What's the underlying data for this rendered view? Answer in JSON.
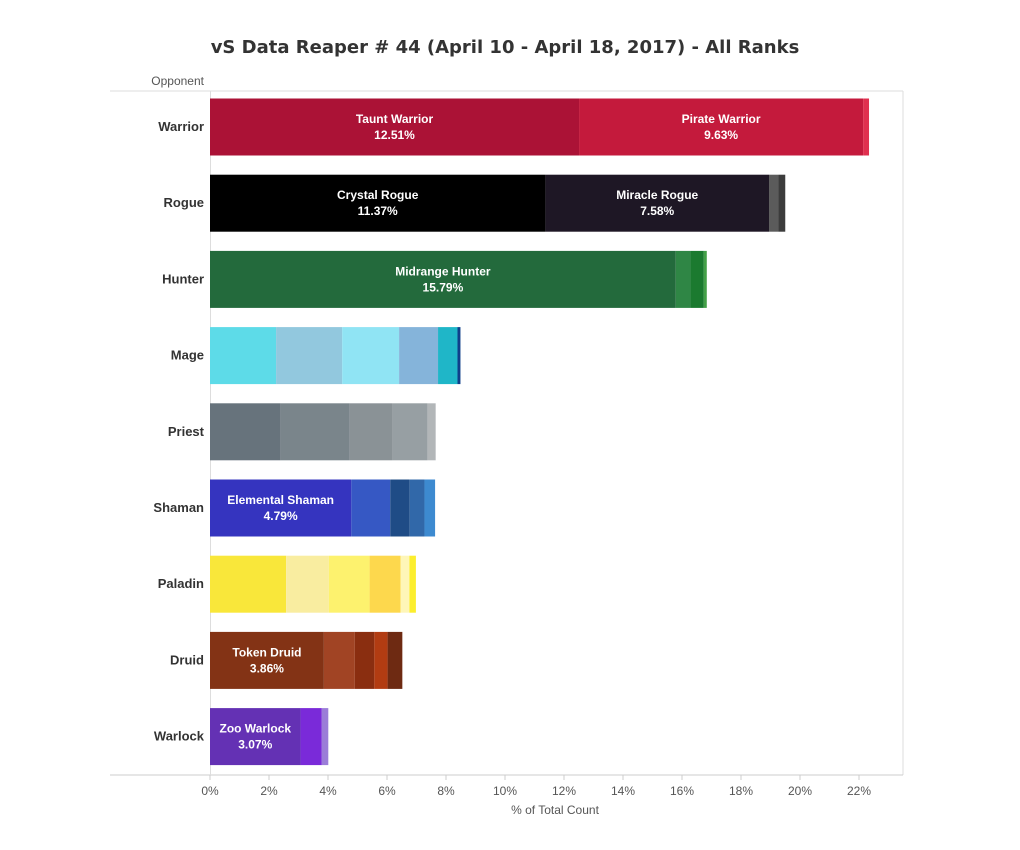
{
  "chart_data": {
    "type": "bar",
    "orientation": "horizontal",
    "stacked": true,
    "title": "vS Data Reaper # 44 (April 10 - April 18, 2017) - All Ranks",
    "xlabel": "% of Total Count",
    "ylabel": "Opponent",
    "xlim": [
      0,
      23.5
    ],
    "x_ticks": [
      "0%",
      "2%",
      "4%",
      "6%",
      "8%",
      "10%",
      "12%",
      "14%",
      "16%",
      "18%",
      "20%",
      "22%"
    ],
    "grid": false,
    "categories": [
      "Warrior",
      "Rogue",
      "Hunter",
      "Mage",
      "Priest",
      "Shaman",
      "Paladin",
      "Druid",
      "Warlock"
    ],
    "bars": [
      {
        "category": "Warrior",
        "segments": [
          {
            "name": "Taunt Warrior",
            "value": 12.51,
            "label": "12.51%",
            "color": "#ab1236"
          },
          {
            "name": "Pirate Warrior",
            "value": 9.63,
            "label": "9.63%",
            "color": "#c41a3c"
          },
          {
            "value": 0.2,
            "color": "#e0304f"
          }
        ]
      },
      {
        "category": "Rogue",
        "segments": [
          {
            "name": "Crystal Rogue",
            "value": 11.37,
            "label": "11.37%",
            "color": "#000000"
          },
          {
            "name": "Miracle Rogue",
            "value": 7.58,
            "label": "7.58%",
            "color": "#1e1725"
          },
          {
            "value": 0.32,
            "color": "#5b5b5b"
          },
          {
            "value": 0.23,
            "color": "#3c3c3c"
          }
        ]
      },
      {
        "category": "Hunter",
        "segments": [
          {
            "name": "Midrange Hunter",
            "value": 15.79,
            "label": "15.79%",
            "color": "#236a3c"
          },
          {
            "value": 0.5,
            "color": "#2f8645"
          },
          {
            "value": 0.45,
            "color": "#1b7a2f"
          },
          {
            "value": 0.1,
            "color": "#43a047"
          }
        ]
      },
      {
        "category": "Mage",
        "segments": [
          {
            "value": 2.24,
            "color": "#5ddbe8"
          },
          {
            "value": 2.24,
            "color": "#92c8de"
          },
          {
            "value": 1.93,
            "color": "#90e4f4"
          },
          {
            "value": 1.32,
            "color": "#85b4da"
          },
          {
            "value": 0.66,
            "color": "#1fb6c8"
          },
          {
            "value": 0.1,
            "color": "#0f3f8a"
          }
        ]
      },
      {
        "category": "Priest",
        "segments": [
          {
            "value": 2.4,
            "color": "#67737c"
          },
          {
            "value": 2.34,
            "color": "#7a858b"
          },
          {
            "value": 1.45,
            "color": "#8a9296"
          },
          {
            "value": 1.18,
            "color": "#979fa3"
          },
          {
            "value": 0.28,
            "color": "#b2b6b8"
          }
        ]
      },
      {
        "category": "Shaman",
        "segments": [
          {
            "name": "Elemental Shaman",
            "value": 4.79,
            "label": "4.79%",
            "color": "#3534bf"
          },
          {
            "value": 1.32,
            "color": "#3658c4"
          },
          {
            "value": 0.66,
            "color": "#1f4c86"
          },
          {
            "value": 0.5,
            "color": "#3168a9"
          },
          {
            "value": 0.36,
            "color": "#3d8ad0"
          }
        ]
      },
      {
        "category": "Paladin",
        "segments": [
          {
            "value": 2.58,
            "color": "#f9e73a"
          },
          {
            "value": 1.45,
            "color": "#f9eda0"
          },
          {
            "value": 1.38,
            "color": "#fdf26e"
          },
          {
            "value": 1.05,
            "color": "#fdd84d"
          },
          {
            "value": 0.3,
            "color": "#fef6b8"
          },
          {
            "value": 0.22,
            "color": "#fcee2e"
          }
        ]
      },
      {
        "category": "Druid",
        "segments": [
          {
            "name": "Token Druid",
            "value": 3.86,
            "label": "3.86%",
            "color": "#833315"
          },
          {
            "value": 1.05,
            "color": "#a14424"
          },
          {
            "value": 0.66,
            "color": "#8a2e10"
          },
          {
            "value": 0.45,
            "color": "#b23c12"
          },
          {
            "value": 0.5,
            "color": "#6e2a12"
          }
        ]
      },
      {
        "category": "Warlock",
        "segments": [
          {
            "name": "Zoo Warlock",
            "value": 3.07,
            "label": "3.07%",
            "color": "#6431b4"
          },
          {
            "value": 0.72,
            "color": "#7a2ad9"
          },
          {
            "value": 0.22,
            "color": "#9b7dd8"
          }
        ]
      }
    ]
  }
}
